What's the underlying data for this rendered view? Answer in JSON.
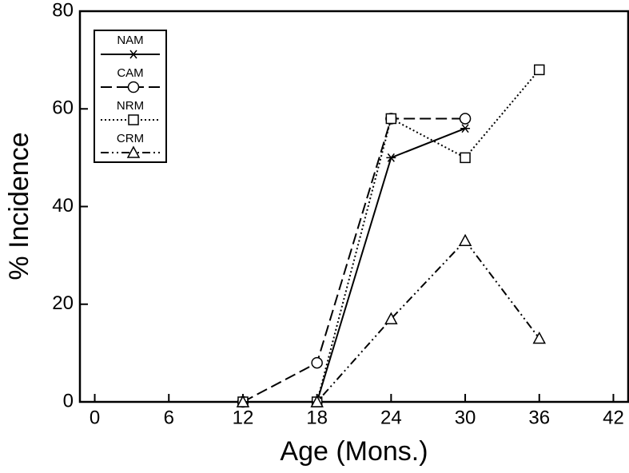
{
  "chart_data": {
    "type": "line",
    "xlabel": "Age (Mons.)",
    "ylabel": "% Incidence",
    "x": [
      12,
      18,
      24,
      30,
      36
    ],
    "series": [
      {
        "name": "NAM",
        "color": "#000000",
        "style": "solid",
        "marker": "asterisk",
        "values": [
          0,
          0,
          50,
          56,
          null
        ]
      },
      {
        "name": "CAM",
        "color": "#000000",
        "style": "dashed",
        "marker": "circle",
        "values": [
          0,
          8,
          58,
          58,
          null
        ]
      },
      {
        "name": "NRM",
        "color": "#000000",
        "style": "dotted",
        "marker": "square",
        "values": [
          0,
          0,
          58,
          50,
          68
        ]
      },
      {
        "name": "CRM",
        "color": "#000000",
        "style": "dashdotdot",
        "marker": "triangle",
        "values": [
          0,
          0,
          17,
          33,
          13
        ]
      }
    ],
    "xlim": [
      -1.2,
      43.2
    ],
    "xticks": [
      0,
      6,
      12,
      18,
      24,
      30,
      36,
      42
    ],
    "ylim": [
      0,
      80
    ],
    "yticks": [
      0,
      20,
      40,
      60,
      80
    ],
    "legend": "upper left"
  }
}
